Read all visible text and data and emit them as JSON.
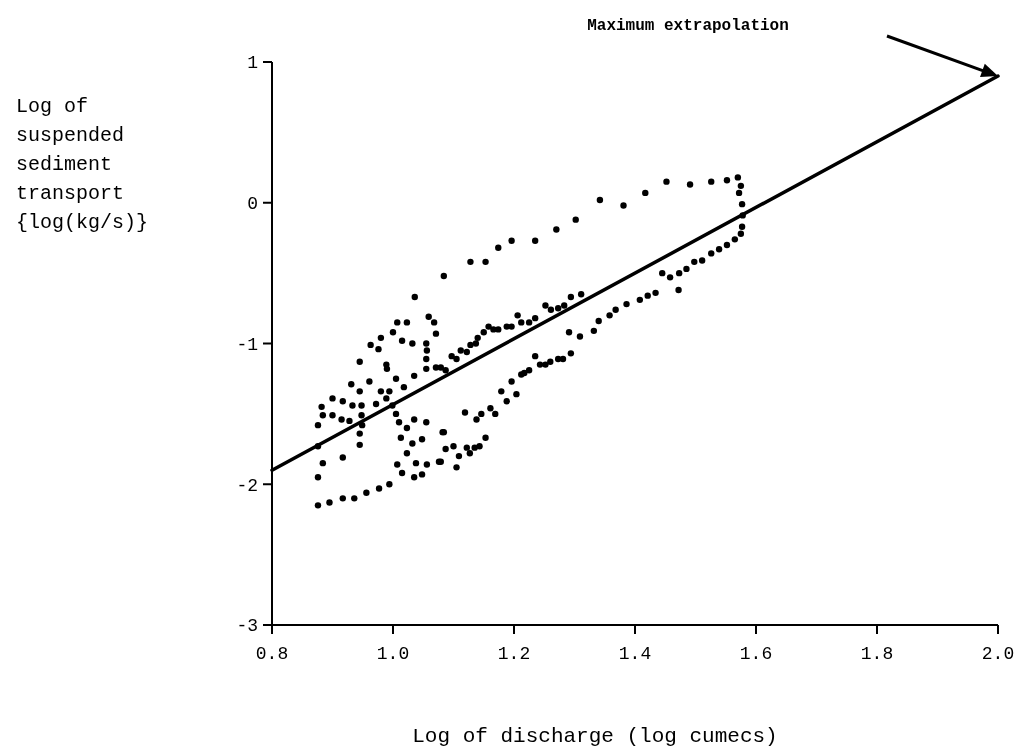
{
  "chart_data": {
    "type": "scatter",
    "xlabel": "Log of discharge (log cumecs)",
    "ylabel": "Log of\nsuspended\nsediment\ntransport\n{log(kg/s)}",
    "xlim": [
      0.8,
      2.0
    ],
    "ylim": [
      -3,
      1
    ],
    "xticks": [
      0.8,
      {
        "value": 1,
        "label": "1.0"
      },
      1.2,
      1.4,
      1.6,
      1.8,
      {
        "value": 2,
        "label": "2.0"
      }
    ],
    "yticks": [
      -3,
      -2,
      -1,
      0,
      1
    ],
    "grid": false,
    "annotations": [
      "Maximum extrapolation"
    ],
    "series": [
      {
        "type": "scatter",
        "color": "#000000",
        "marker": "circle",
        "x": [
          1.084,
          1.128,
          1.153,
          1.174,
          1.196,
          1.235,
          1.27,
          1.302,
          1.342,
          1.381,
          1.417,
          1.452,
          1.491,
          1.526,
          1.552,
          1.57,
          1.575,
          1.572,
          1.577,
          1.578,
          1.577,
          1.575,
          1.565,
          1.552,
          1.539,
          1.526,
          1.511,
          1.498,
          1.485,
          1.473,
          1.472,
          1.458,
          1.445,
          1.434,
          1.421,
          1.408,
          1.386,
          1.368,
          1.358,
          1.34,
          1.332,
          1.309,
          1.291,
          1.294,
          1.281,
          1.273,
          1.26,
          1.252,
          1.243,
          1.235,
          1.225,
          1.217,
          1.212,
          1.204,
          1.196,
          1.188,
          1.179,
          1.169,
          1.161,
          1.146,
          1.138,
          1.119,
          1.153,
          1.143,
          1.135,
          1.127,
          1.122,
          1.109,
          1.105,
          1.1,
          1.087,
          1.082,
          1.079,
          1.079,
          1.087,
          1.097,
          1.105,
          1.112,
          1.122,
          1.128,
          1.137,
          1.14,
          1.15,
          1.158,
          1.166,
          1.174,
          1.188,
          1.196,
          1.206,
          1.212,
          1.225,
          1.235,
          1.252,
          1.261,
          1.273,
          1.283,
          1.294,
          1.311,
          1.036,
          1.007,
          1.023,
          1.059,
          1.068,
          1.071,
          1.0,
          0.98,
          0.963,
          0.976,
          1.015,
          1.032,
          1.055,
          1.056,
          1.055,
          1.035,
          1.055,
          1.071,
          0.945,
          0.989,
          0.99,
          0.961,
          0.931,
          0.945,
          0.98,
          0.994,
          1.005,
          1.018,
          0.882,
          0.9,
          0.917,
          0.933,
          0.948,
          0.972,
          0.989,
          0.999,
          0.884,
          0.9,
          0.915,
          0.928,
          0.948,
          0.949,
          0.945,
          0.945,
          0.917,
          0.884,
          0.876,
          0.876,
          0.876,
          1.005,
          1.01,
          1.023,
          1.035,
          1.055,
          1.013,
          1.032,
          1.048,
          1.023,
          1.038,
          1.007,
          1.015,
          1.035,
          1.048,
          1.056,
          1.076,
          1.084,
          0.876,
          0.895,
          0.917,
          0.936,
          0.956,
          0.977,
          0.994
        ],
        "values": [
          -0.52,
          -0.42,
          -0.42,
          -0.32,
          -0.27,
          -0.27,
          -0.19,
          -0.12,
          0.02,
          -0.02,
          0.07,
          0.15,
          0.13,
          0.15,
          0.16,
          0.18,
          0.12,
          0.07,
          -0.01,
          -0.09,
          -0.17,
          -0.22,
          -0.26,
          -0.3,
          -0.33,
          -0.36,
          -0.41,
          -0.42,
          -0.47,
          -0.5,
          -0.62,
          -0.53,
          -0.5,
          -0.64,
          -0.66,
          -0.69,
          -0.72,
          -0.76,
          -0.8,
          -0.84,
          -0.91,
          -0.95,
          -0.92,
          -1.07,
          -1.11,
          -1.11,
          -1.13,
          -1.15,
          -1.15,
          -1.09,
          -1.19,
          -1.21,
          -1.22,
          -1.36,
          -1.27,
          -1.41,
          -1.34,
          -1.5,
          -1.46,
          -1.5,
          -1.54,
          -1.49,
          -1.67,
          -1.73,
          -1.74,
          -1.78,
          -1.74,
          -1.8,
          -1.88,
          -1.73,
          -1.75,
          -1.63,
          -1.84,
          -1.17,
          -1.19,
          -1.09,
          -1.11,
          -1.05,
          -1.06,
          -1.01,
          -1.0,
          -0.96,
          -0.92,
          -0.88,
          -0.9,
          -0.9,
          -0.88,
          -0.88,
          -0.8,
          -0.85,
          -0.85,
          -0.82,
          -0.73,
          -0.76,
          -0.75,
          -0.73,
          -0.67,
          -0.65,
          -0.67,
          -0.85,
          -0.85,
          -0.81,
          -0.85,
          -0.93,
          -0.92,
          -0.96,
          -1.01,
          -1.04,
          -0.98,
          -1.0,
          -1.0,
          -1.05,
          -1.11,
          -1.23,
          -1.18,
          -1.17,
          -1.13,
          -1.15,
          -1.18,
          -1.27,
          -1.29,
          -1.34,
          -1.34,
          -1.34,
          -1.25,
          -1.31,
          -1.45,
          -1.39,
          -1.41,
          -1.44,
          -1.44,
          -1.43,
          -1.39,
          -1.44,
          -1.51,
          -1.51,
          -1.54,
          -1.55,
          -1.51,
          -1.58,
          -1.64,
          -1.72,
          -1.81,
          -1.85,
          -1.95,
          -1.58,
          -1.73,
          -1.5,
          -1.56,
          -1.6,
          -1.54,
          -1.56,
          -1.67,
          -1.71,
          -1.68,
          -1.78,
          -1.85,
          -1.86,
          -1.92,
          -1.95,
          -1.93,
          -1.86,
          -1.84,
          -1.63,
          -2.15,
          -2.13,
          -2.1,
          -2.1,
          -2.06,
          -2.03,
          -2.0
        ]
      },
      {
        "type": "line",
        "color": "#000000",
        "line_style": "solid",
        "x": [
          0.8,
          2.0
        ],
        "values": [
          -1.9,
          0.9
        ]
      }
    ]
  }
}
